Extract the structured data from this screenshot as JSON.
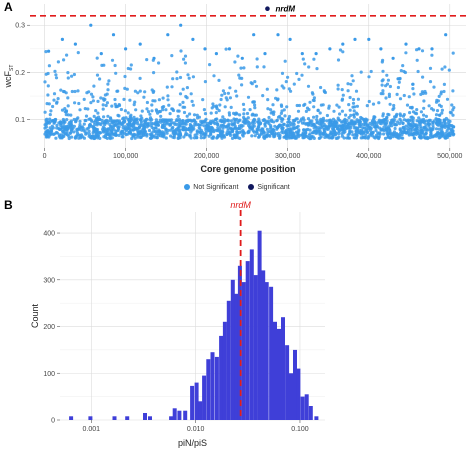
{
  "panels": {
    "a_label": "A",
    "b_label": "B"
  },
  "chart_data": [
    {
      "type": "scatter",
      "title": "",
      "xlabel": "Core genome position",
      "ylabel": "wcF",
      "ylabel_subscript": "ST",
      "xlim": [
        -18000,
        520000
      ],
      "ylim": [
        0.04,
        0.345
      ],
      "xticks": [
        0,
        100000,
        200000,
        300000,
        400000,
        500000
      ],
      "xtick_labels": [
        "0",
        "100,000",
        "200,000",
        "300,000",
        "400,000",
        "500,000"
      ],
      "yticks": [
        0.1,
        0.2,
        0.3
      ],
      "ytick_labels": [
        "0.1",
        "0.2",
        "0.3"
      ],
      "threshold_y": 0.32,
      "threshold_color": "#e01b1b",
      "grid": true,
      "legend": {
        "position": "bottom",
        "entries": [
          {
            "label": "Not Significant",
            "color": "#3a9ae8"
          },
          {
            "label": "Significant",
            "color": "#10185e"
          }
        ]
      },
      "highlight": {
        "label": "nrdM",
        "x": 275000,
        "y": 0.335,
        "color": "#10185e"
      },
      "point_color": "#3a9ae8",
      "n_points": 2200,
      "point_band_y": [
        0.06,
        0.1
      ],
      "peaks": [
        {
          "x": 5000,
          "y": 0.245
        },
        {
          "x": 22000,
          "y": 0.27
        },
        {
          "x": 38000,
          "y": 0.26
        },
        {
          "x": 57000,
          "y": 0.3
        },
        {
          "x": 70000,
          "y": 0.24
        },
        {
          "x": 85000,
          "y": 0.28
        },
        {
          "x": 100000,
          "y": 0.25
        },
        {
          "x": 118000,
          "y": 0.26
        },
        {
          "x": 135000,
          "y": 0.23
        },
        {
          "x": 152000,
          "y": 0.28
        },
        {
          "x": 168000,
          "y": 0.3
        },
        {
          "x": 183000,
          "y": 0.27
        },
        {
          "x": 198000,
          "y": 0.25
        },
        {
          "x": 212000,
          "y": 0.24
        },
        {
          "x": 228000,
          "y": 0.25
        },
        {
          "x": 244000,
          "y": 0.23
        },
        {
          "x": 258000,
          "y": 0.28
        },
        {
          "x": 272000,
          "y": 0.24
        },
        {
          "x": 288000,
          "y": 0.28
        },
        {
          "x": 303000,
          "y": 0.27
        },
        {
          "x": 318000,
          "y": 0.24
        },
        {
          "x": 335000,
          "y": 0.24
        },
        {
          "x": 352000,
          "y": 0.25
        },
        {
          "x": 368000,
          "y": 0.26
        },
        {
          "x": 383000,
          "y": 0.27
        },
        {
          "x": 400000,
          "y": 0.27
        },
        {
          "x": 415000,
          "y": 0.25
        },
        {
          "x": 430000,
          "y": 0.23
        },
        {
          "x": 446000,
          "y": 0.26
        },
        {
          "x": 462000,
          "y": 0.25
        },
        {
          "x": 478000,
          "y": 0.25
        },
        {
          "x": 495000,
          "y": 0.28
        }
      ]
    },
    {
      "type": "bar",
      "title": "",
      "xlabel": "piN/piS",
      "ylabel": "Count",
      "xscale": "log",
      "xlim_log10": [
        -3.3,
        -0.76
      ],
      "ylim": [
        0,
        445
      ],
      "xticks": [
        0.001,
        0.01,
        0.1
      ],
      "xtick_labels": [
        "0.001",
        "0.010",
        "0.100"
      ],
      "yticks": [
        0,
        100,
        200,
        300,
        400
      ],
      "ytick_labels": [
        "0",
        "100",
        "200",
        "300",
        "400"
      ],
      "bar_color": "#3f3fd8",
      "grid": true,
      "highlight": {
        "label": "nrdM",
        "x": 0.027,
        "color": "#e01b1b"
      },
      "bins": [
        {
          "x": 0.00064,
          "count": 8
        },
        {
          "x": 0.00098,
          "count": 8
        },
        {
          "x": 0.00167,
          "count": 8
        },
        {
          "x": 0.00221,
          "count": 8
        },
        {
          "x": 0.00327,
          "count": 15
        },
        {
          "x": 0.00365,
          "count": 8
        },
        {
          "x": 0.00582,
          "count": 8
        },
        {
          "x": 0.0063,
          "count": 25
        },
        {
          "x": 0.00699,
          "count": 20
        },
        {
          "x": 0.00795,
          "count": 20
        },
        {
          "x": 0.00926,
          "count": 73
        },
        {
          "x": 0.01022,
          "count": 80
        },
        {
          "x": 0.01108,
          "count": 40
        },
        {
          "x": 0.01205,
          "count": 95
        },
        {
          "x": 0.01323,
          "count": 130
        },
        {
          "x": 0.01451,
          "count": 145
        },
        {
          "x": 0.016,
          "count": 135
        },
        {
          "x": 0.01754,
          "count": 180
        },
        {
          "x": 0.01907,
          "count": 210
        },
        {
          "x": 0.02079,
          "count": 255
        },
        {
          "x": 0.02272,
          "count": 300
        },
        {
          "x": 0.0246,
          "count": 270
        },
        {
          "x": 0.02656,
          "count": 330
        },
        {
          "x": 0.02896,
          "count": 295
        },
        {
          "x": 0.03159,
          "count": 340
        },
        {
          "x": 0.03452,
          "count": 365
        },
        {
          "x": 0.03767,
          "count": 310
        },
        {
          "x": 0.04101,
          "count": 405
        },
        {
          "x": 0.04441,
          "count": 320
        },
        {
          "x": 0.048,
          "count": 295
        },
        {
          "x": 0.05286,
          "count": 285
        },
        {
          "x": 0.05759,
          "count": 210
        },
        {
          "x": 0.06297,
          "count": 195
        },
        {
          "x": 0.06876,
          "count": 220
        },
        {
          "x": 0.07525,
          "count": 160
        },
        {
          "x": 0.08212,
          "count": 100
        },
        {
          "x": 0.08958,
          "count": 150
        },
        {
          "x": 0.09665,
          "count": 110
        },
        {
          "x": 0.10606,
          "count": 50
        },
        {
          "x": 0.11604,
          "count": 55
        },
        {
          "x": 0.12704,
          "count": 30
        },
        {
          "x": 0.14387,
          "count": 8
        }
      ]
    }
  ]
}
